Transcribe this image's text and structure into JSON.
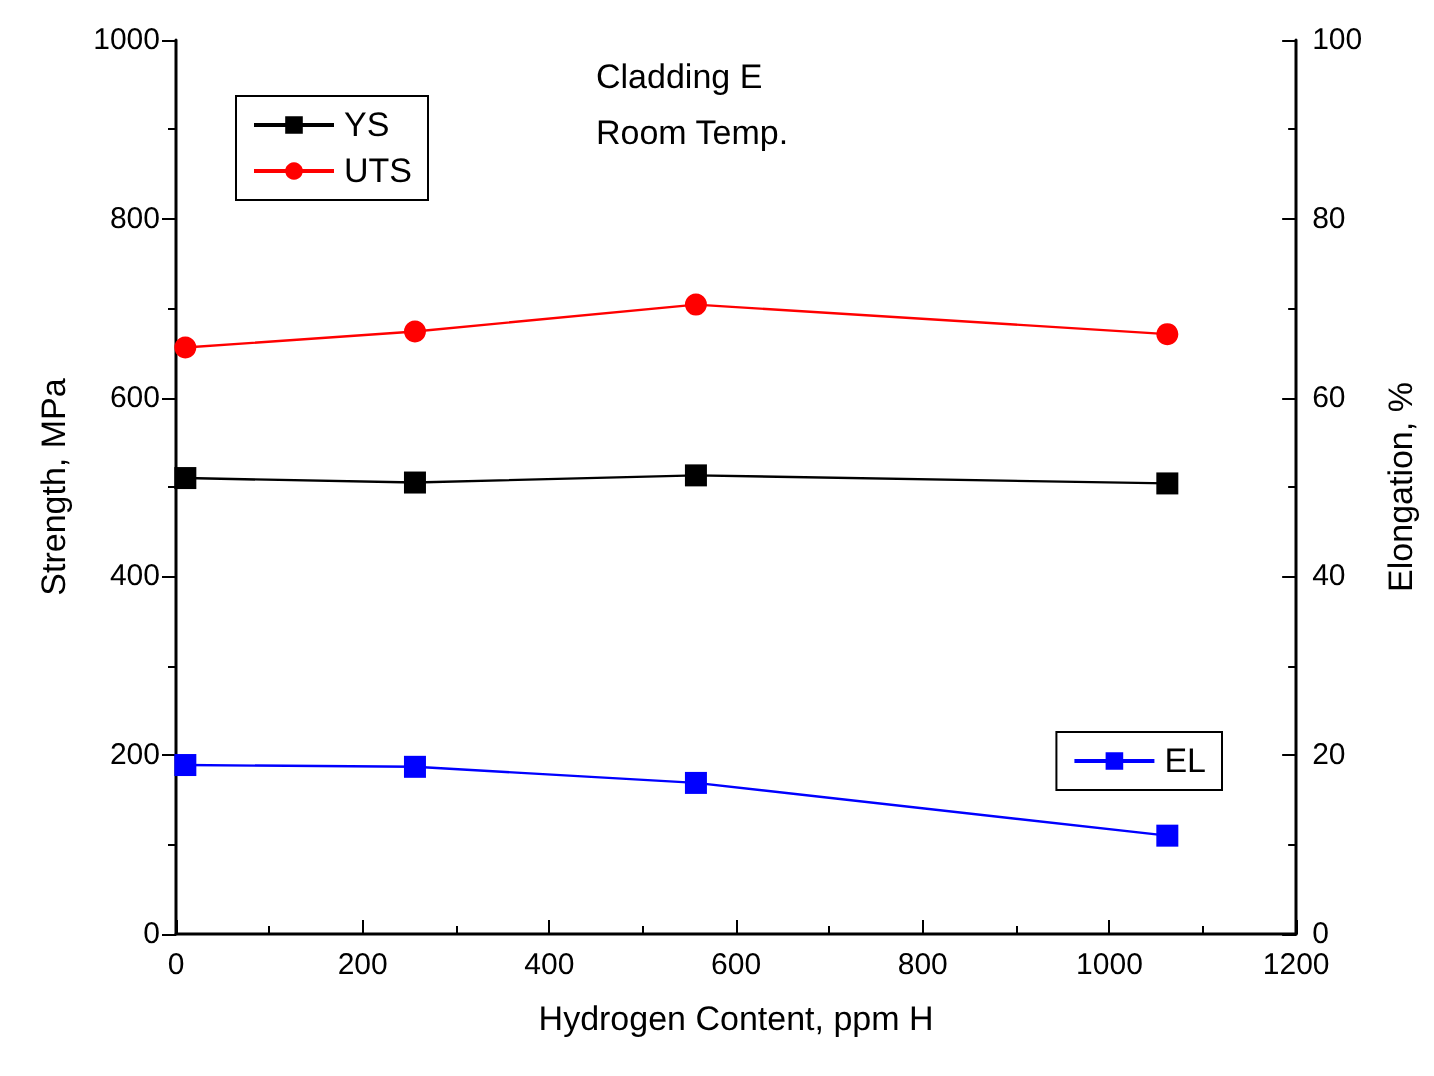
{
  "chart_data": {
    "type": "line",
    "xlabel": "Hydrogen Content, ppm H",
    "ylabel": "Strength, MPa",
    "y2label": "Elongation, %",
    "x": [
      10,
      256,
      557,
      1062
    ],
    "series": [
      {
        "name": "YS",
        "color": "#000000",
        "marker": "square",
        "values": [
          510,
          505,
          513,
          504
        ]
      },
      {
        "name": "UTS",
        "color": "#ff0000",
        "marker": "circle",
        "values": [
          656,
          674,
          704,
          671
        ]
      },
      {
        "name": "EL",
        "color": "#0000ff",
        "marker": "square",
        "axis": "y2",
        "values": [
          18.9,
          18.7,
          16.9,
          11.0
        ]
      }
    ],
    "xlim": [
      0,
      1200
    ],
    "xticks": [
      0,
      200,
      400,
      600,
      800,
      1000,
      1200
    ],
    "ylim": [
      0,
      1000
    ],
    "yticks": [
      0,
      200,
      400,
      600,
      800,
      1000
    ],
    "y2lim": [
      0,
      100
    ],
    "y2ticks": [
      0,
      20,
      40,
      60,
      80,
      100
    ],
    "annotations": [
      "Cladding E",
      "Room Temp."
    ],
    "legend": "top left",
    "grid": false
  }
}
